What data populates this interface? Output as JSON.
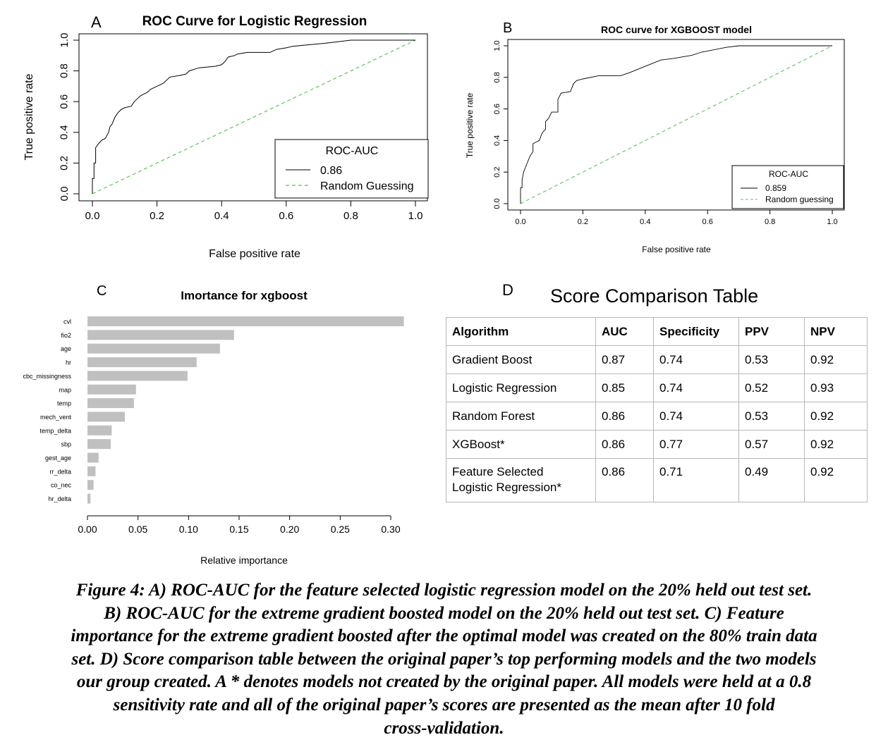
{
  "chart_data": [
    {
      "type": "line",
      "panel_label": "A",
      "title": "ROC Curve for Logistic Regression",
      "xlabel": "False positive rate",
      "ylabel": "True positive rate",
      "xlim": [
        0,
        1
      ],
      "ylim": [
        0,
        1
      ],
      "xticks": [
        "0.0",
        "0.2",
        "0.4",
        "0.6",
        "0.8",
        "1.0"
      ],
      "yticks": [
        "0.0",
        "0.2",
        "0.4",
        "0.6",
        "0.8",
        "1.0"
      ],
      "grid": false,
      "legend": {
        "title": "ROC-AUC",
        "placement": "bottom-right",
        "entries": [
          {
            "label": "0.86",
            "style": "solid",
            "color": "#000000"
          },
          {
            "label": "Random Guessing",
            "style": "dashed",
            "color": "#5cc35c"
          }
        ]
      },
      "series": [
        {
          "legend": "0.86",
          "color": "#000000",
          "points": [
            [
              0,
              0
            ],
            [
              0,
              0.1
            ],
            [
              0.005,
              0.1
            ],
            [
              0.005,
              0.2
            ],
            [
              0.01,
              0.2
            ],
            [
              0.01,
              0.3
            ],
            [
              0.02,
              0.33
            ],
            [
              0.03,
              0.35
            ],
            [
              0.04,
              0.36
            ],
            [
              0.05,
              0.4
            ],
            [
              0.055,
              0.44
            ],
            [
              0.06,
              0.45
            ],
            [
              0.07,
              0.5
            ],
            [
              0.08,
              0.53
            ],
            [
              0.09,
              0.55
            ],
            [
              0.1,
              0.56
            ],
            [
              0.12,
              0.57
            ],
            [
              0.13,
              0.6
            ],
            [
              0.14,
              0.62
            ],
            [
              0.15,
              0.64
            ],
            [
              0.17,
              0.66
            ],
            [
              0.18,
              0.68
            ],
            [
              0.2,
              0.7
            ],
            [
              0.22,
              0.72
            ],
            [
              0.24,
              0.76
            ],
            [
              0.27,
              0.77
            ],
            [
              0.29,
              0.78
            ],
            [
              0.3,
              0.8
            ],
            [
              0.33,
              0.82
            ],
            [
              0.38,
              0.83
            ],
            [
              0.4,
              0.84
            ],
            [
              0.41,
              0.86
            ],
            [
              0.42,
              0.89
            ],
            [
              0.44,
              0.9
            ],
            [
              0.45,
              0.91
            ],
            [
              0.48,
              0.92
            ],
            [
              0.55,
              0.92
            ],
            [
              0.57,
              0.94
            ],
            [
              0.6,
              0.95
            ],
            [
              0.62,
              0.96
            ],
            [
              0.67,
              0.97
            ],
            [
              0.72,
              0.98
            ],
            [
              0.76,
              0.99
            ],
            [
              0.8,
              1.0
            ],
            [
              1.0,
              1.0
            ]
          ]
        },
        {
          "legend": "Random Guessing",
          "color": "#5cc35c",
          "style": "dashed",
          "points": [
            [
              0,
              0
            ],
            [
              1,
              1
            ]
          ]
        }
      ]
    },
    {
      "type": "line",
      "panel_label": "B",
      "title": "ROC curve for XGBOOST model",
      "xlabel": "False positive rate",
      "ylabel": "True positive rate",
      "xlim": [
        0,
        1
      ],
      "ylim": [
        0,
        1
      ],
      "xticks": [
        "0.0",
        "0.2",
        "0.4",
        "0.6",
        "0.8",
        "1.0"
      ],
      "yticks": [
        "0.0",
        "0.2",
        "0.4",
        "0.6",
        "0.8",
        "1.0"
      ],
      "grid": false,
      "legend": {
        "title": "ROC-AUC",
        "placement": "bottom-right",
        "entries": [
          {
            "label": "0.859",
            "style": "solid",
            "color": "#000000"
          },
          {
            "label": "Random guessing",
            "style": "dashed",
            "color": "#5cc35c"
          }
        ]
      },
      "series": [
        {
          "legend": "0.859",
          "color": "#000000",
          "points": [
            [
              0,
              0
            ],
            [
              0,
              0.1
            ],
            [
              0.005,
              0.1
            ],
            [
              0.005,
              0.15
            ],
            [
              0.01,
              0.2
            ],
            [
              0.02,
              0.25
            ],
            [
              0.03,
              0.3
            ],
            [
              0.04,
              0.33
            ],
            [
              0.04,
              0.38
            ],
            [
              0.06,
              0.4
            ],
            [
              0.07,
              0.45
            ],
            [
              0.08,
              0.47
            ],
            [
              0.08,
              0.52
            ],
            [
              0.09,
              0.54
            ],
            [
              0.1,
              0.58
            ],
            [
              0.12,
              0.58
            ],
            [
              0.12,
              0.66
            ],
            [
              0.13,
              0.7
            ],
            [
              0.16,
              0.71
            ],
            [
              0.17,
              0.76
            ],
            [
              0.18,
              0.78
            ],
            [
              0.2,
              0.79
            ],
            [
              0.25,
              0.81
            ],
            [
              0.32,
              0.81
            ],
            [
              0.35,
              0.83
            ],
            [
              0.4,
              0.87
            ],
            [
              0.45,
              0.91
            ],
            [
              0.49,
              0.92
            ],
            [
              0.52,
              0.93
            ],
            [
              0.55,
              0.94
            ],
            [
              0.58,
              0.96
            ],
            [
              0.66,
              0.99
            ],
            [
              0.7,
              1.0
            ],
            [
              1.0,
              1.0
            ]
          ]
        },
        {
          "legend": "Random guessing",
          "color": "#5cc35c",
          "style": "dashed",
          "points": [
            [
              0,
              0
            ],
            [
              1,
              1
            ]
          ]
        }
      ]
    },
    {
      "type": "bar",
      "orientation": "horizontal",
      "panel_label": "C",
      "title": "Imortance for xgboost",
      "xlabel": "Relative importance",
      "ylabel": "",
      "xlim": [
        0,
        0.31
      ],
      "xticks": [
        "0.00",
        "0.05",
        "0.10",
        "0.15",
        "0.20",
        "0.25",
        "0.30"
      ],
      "grid": false,
      "bar_color": "#c0c0c0",
      "categories": [
        "cvl",
        "fio2",
        "age",
        "hr",
        "cbc_missingness",
        "map",
        "temp",
        "mech_vent",
        "temp_delta",
        "sbp",
        "gest_age",
        "rr_delta",
        "co_nec",
        "hr_delta"
      ],
      "values": [
        0.313,
        0.145,
        0.131,
        0.108,
        0.099,
        0.048,
        0.046,
        0.037,
        0.024,
        0.023,
        0.011,
        0.008,
        0.006,
        0.003
      ]
    },
    {
      "type": "table",
      "panel_label": "D",
      "title": "Score Comparison Table",
      "columns": [
        "Algorithm",
        "AUC",
        "Specificity",
        "PPV",
        "NPV"
      ],
      "rows": [
        [
          "Gradient Boost",
          "0.87",
          "0.74",
          "0.53",
          "0.92"
        ],
        [
          "Logistic Regression",
          "0.85",
          "0.74",
          "0.52",
          "0.93"
        ],
        [
          "Random Forest",
          "0.86",
          "0.74",
          "0.53",
          "0.92"
        ],
        [
          "XGBoost*",
          "0.86",
          "0.77",
          "0.57",
          "0.92"
        ],
        [
          [
            "Feature Selected",
            "Logistic Regression*"
          ],
          "0.86",
          "0.71",
          "0.49",
          "0.92"
        ]
      ]
    }
  ],
  "caption": {
    "lines": [
      "Figure 4: A) ROC-AUC for the feature selected logistic regression model on the 20% held out test set.",
      "B) ROC-AUC for the extreme gradient boosted model on the 20%  held out test set. C) Feature",
      "importance for the extreme gradient boosted after the optimal model was created on the 80% train data",
      "set. D) Score comparison table between the original paper’s top performing models and the two models",
      "our group created. A * denotes models not created by the original paper. All models were held at a 0.8",
      "sensitivity rate and all of the original paper’s scores are presented as the mean after 10 fold",
      "cross-validation."
    ]
  }
}
